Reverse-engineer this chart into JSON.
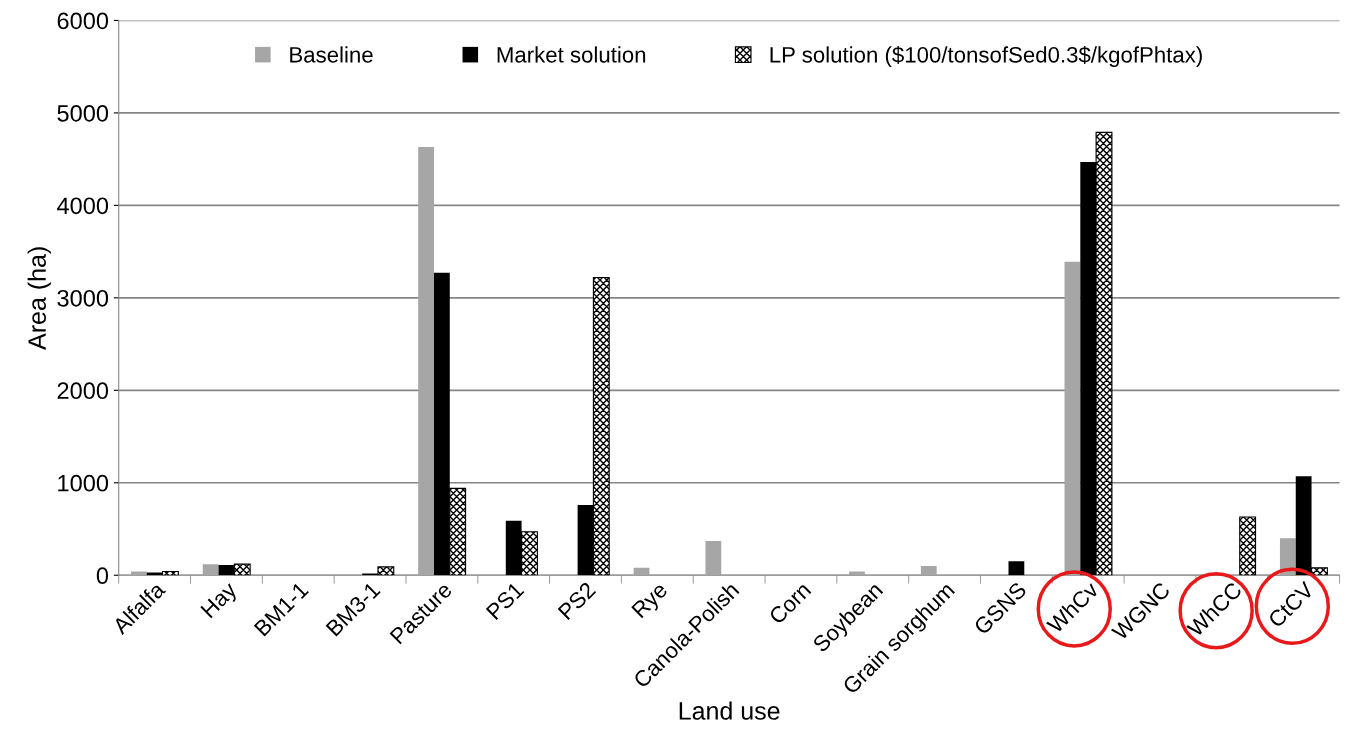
{
  "chart_data": {
    "type": "bar",
    "xlabel": "Land use",
    "ylabel": "Area (ha)",
    "categories": [
      "Alfalfa",
      "Hay",
      "BM1-1",
      "BM3-1",
      "Pasture",
      "PS1",
      "PS2",
      "Rye",
      "Canola-Polish",
      "Corn",
      "Soybean",
      "Grain sorghum",
      "GSNS",
      "WhCv",
      "WGNC",
      "WhCC",
      "CtCV"
    ],
    "series": [
      {
        "name": "Baseline",
        "color": "#a6a6a6",
        "values": [
          40,
          120,
          null,
          null,
          4630,
          null,
          null,
          80,
          370,
          null,
          40,
          100,
          null,
          3390,
          null,
          null,
          400
        ]
      },
      {
        "name": "Market solution",
        "color": "#000000",
        "values": [
          30,
          110,
          null,
          20,
          3270,
          590,
          760,
          null,
          null,
          null,
          null,
          null,
          150,
          4470,
          null,
          null,
          1070
        ]
      },
      {
        "name": "LP solution ($100/tonsofSed0.3$/kgofPhtax)",
        "color": "#000000",
        "values": [
          40,
          120,
          null,
          90,
          940,
          470,
          3220,
          null,
          null,
          null,
          null,
          null,
          null,
          4790,
          null,
          630,
          80
        ]
      }
    ],
    "ylim": [
      0,
      6000
    ],
    "yticks": [
      0,
      1000,
      2000,
      3000,
      4000,
      5000,
      6000
    ],
    "grid": "y",
    "legend": "top"
  }
}
